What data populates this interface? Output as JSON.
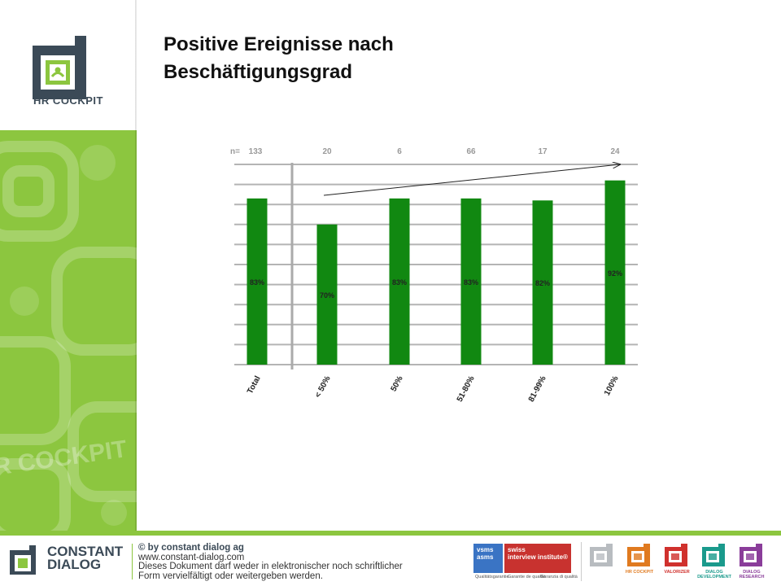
{
  "sidebar": {
    "logo_text": "HR COCKPIT",
    "watermark_text": "HR COCKPIT",
    "colors": {
      "green": "#8cc63f",
      "dark": "#3b4a57"
    }
  },
  "title_lines": [
    "Positive Ereignisse nach",
    "Beschäftigungsgrad"
  ],
  "chart_data": {
    "type": "bar",
    "title": "",
    "xlabel": "",
    "ylabel": "",
    "n_prefix": "n=",
    "categories": [
      "Total",
      "< 50%",
      "50%",
      "51-80%",
      "81-99%",
      "100%"
    ],
    "n_values": [
      "133",
      "20",
      "6",
      "66",
      "17",
      "24"
    ],
    "values": [
      83,
      70,
      83,
      83,
      82,
      92
    ],
    "value_labels": [
      "83%",
      "70%",
      "83%",
      "83%",
      "82%",
      "92%"
    ],
    "ylim": [
      0,
      100
    ],
    "grid": true,
    "bar_color": "#118811",
    "trend_arrow": true
  },
  "footer": {
    "brand_lines": [
      "CONSTANT",
      "DIALOG"
    ],
    "lines": [
      "© by constant dialog ag",
      "www.constant-dialog.com",
      "Dieses Dokument darf weder in elektronischer noch schriftlicher",
      "Form vervielfältigt oder weitergeben werden."
    ],
    "badge_asms": [
      "vsms",
      "asms"
    ],
    "badge_sii": [
      "swiss",
      "interview institute®"
    ],
    "badge_sub": [
      "Qualitätsgarantie",
      "Garantie de qualité",
      "Garanzia di qualità"
    ],
    "products": [
      {
        "label": "",
        "color": "#b8bcc0",
        "icon": "dialog-icon"
      },
      {
        "label": "HR COCKPIT",
        "color": "#e07a1f",
        "icon": "hr-cockpit-icon"
      },
      {
        "label": "VALORIZER",
        "color": "#d0312d",
        "icon": "valorizer-icon"
      },
      {
        "label": "DIALOG DEVELOPMENT",
        "color": "#1a9a8c",
        "icon": "dialog-development-icon"
      },
      {
        "label": "DIALOG RESEARCH",
        "color": "#8a3d9a",
        "icon": "dialog-research-icon"
      }
    ]
  }
}
